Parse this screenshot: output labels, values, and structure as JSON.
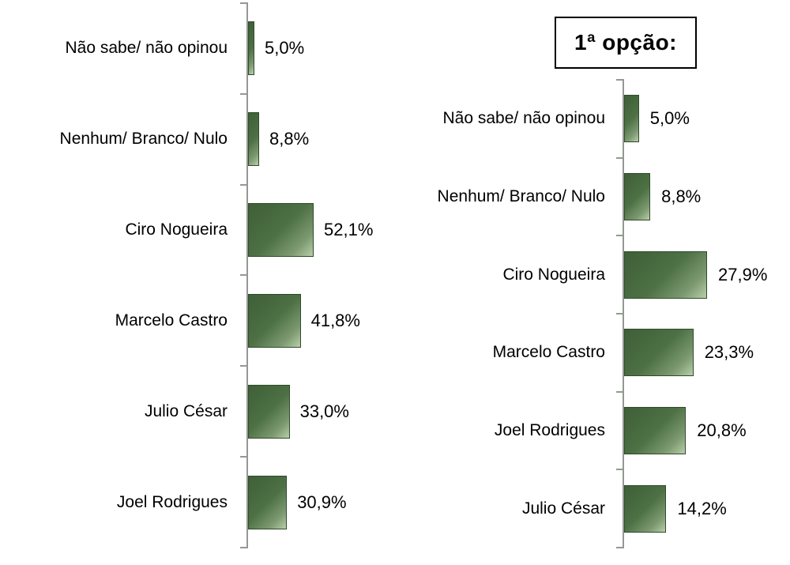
{
  "title_box": {
    "label": "1ª opção:"
  },
  "colors": {
    "background": "#ffffff",
    "text": "#000000",
    "title_border": "#000000",
    "axis": "#939992",
    "bar_dark": "#3f5f38",
    "bar_mid": "#4d7044",
    "bar_soft": "#7d9a71",
    "bar_light": "#b9cfab",
    "bar_border": "#2f4a2a"
  },
  "chart_data": [
    {
      "type": "bar",
      "orientation": "horizontal",
      "title": "",
      "categories": [
        "Não sabe/ não opinou",
        "Nenhum/ Branco/ Nulo",
        "Ciro Nogueira",
        "Marcelo Castro",
        "Julio César",
        "Joel Rodrigues"
      ],
      "values": [
        5.0,
        8.8,
        52.1,
        41.8,
        33.0,
        30.9
      ],
      "value_labels": [
        "5,0%",
        "8,8%",
        "52,1%",
        "41,8%",
        "33,0%",
        "30,9%"
      ],
      "xlim": [
        0,
        60
      ],
      "grid": false,
      "legend": "none",
      "value_label_position": "right-of-bar"
    },
    {
      "type": "bar",
      "orientation": "horizontal",
      "title": "1ª opção:",
      "categories": [
        "Não sabe/ não opinou",
        "Nenhum/ Branco/ Nulo",
        "Ciro Nogueira",
        "Marcelo Castro",
        "Joel Rodrigues",
        "Julio César"
      ],
      "values": [
        5.0,
        8.8,
        27.9,
        23.3,
        20.8,
        14.2
      ],
      "value_labels": [
        "5,0%",
        "8,8%",
        "27,9%",
        "23,3%",
        "20,8%",
        "14,2%"
      ],
      "xlim": [
        0,
        30
      ],
      "grid": false,
      "legend": "none",
      "value_label_position": "right-of-bar"
    }
  ]
}
